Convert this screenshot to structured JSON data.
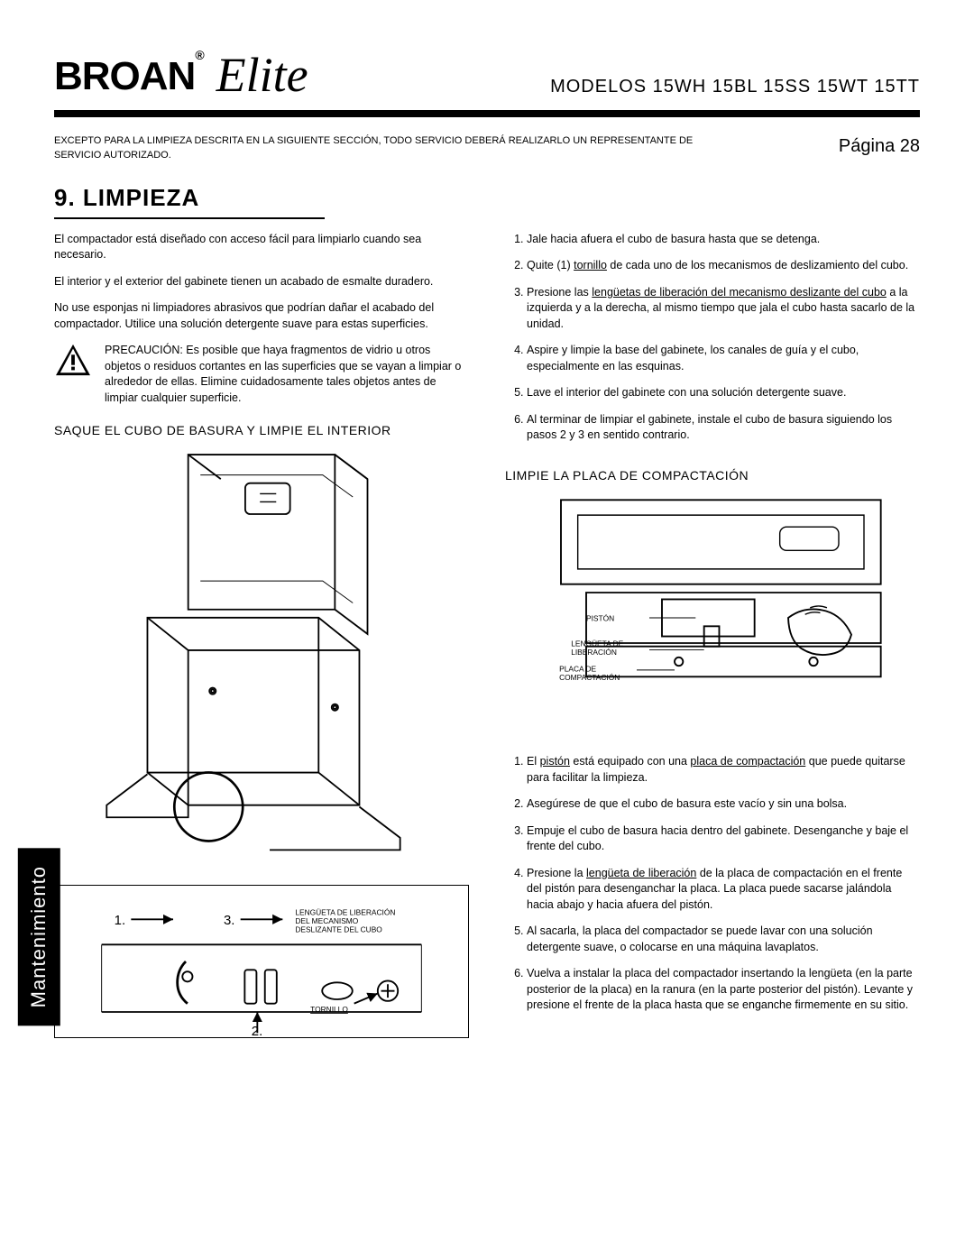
{
  "header": {
    "brand": "BROAN",
    "brand_reg": "®",
    "subbrand": "Elite",
    "models": "MODELOS 15WH   15BL   15SS   15WT   15TT"
  },
  "topnote": "EXCEPTO PARA LA LIMPIEZA DESCRITA EN LA SIGUIENTE SECCIÓN, TODO SERVICIO DEBERÁ REALIZARLO UN REPRESENTANTE DE SERVICIO AUTORIZADO.",
  "page_label": "Página 28",
  "section_title": "9. LIMPIEZA",
  "side_tab": "Mantenimiento",
  "left": {
    "p1": "El compactador está diseñado con acceso fácil para limpiarlo cuando sea necesario.",
    "p2": "El interior y el exterior del gabinete tienen un acabado de esmalte duradero.",
    "p3": "No use esponjas ni limpiadores abrasivos que podrían dañar el acabado del compactador. Utilice una solución detergente suave para estas superficies.",
    "caution": "PRECAUCIÓN: Es posible que haya fragmentos de vidrio u otros objetos o residuos cortantes en las superficies que se vayan a limpiar o alrededor de ellas. Elimine cuidadosamente tales objetos antes de limpiar cualquier superficie.",
    "subhead": "SAQUE EL CUBO DE BASURA Y LIMPIE EL INTERIOR",
    "fig_small": {
      "n1": "1.",
      "n2": "2.",
      "n3": "3.",
      "lbl_tab": "LENGÜETA DE LIBERACIÓN DEL MECANISMO DESLIZANTE DEL CUBO",
      "lbl_screw": "TORNILLO"
    }
  },
  "right": {
    "steps_a": [
      "Jale hacia afuera el cubo de basura hasta que se detenga.",
      "Quite (1) <u>tornillo</u> de cada uno de los mecanismos de deslizamiento del cubo.",
      "Presione las <u>lengüetas de liberación del mecanismo deslizante del cubo</u> a la izquierda y a la derecha, al mismo tiempo que jala el cubo hasta sacarlo de la unidad.",
      "Aspire y limpie la base del gabinete, los canales de guía y el cubo, especialmente en las esquinas.",
      "Lave el interior del gabinete con una solución detergente suave.",
      "Al terminar de limpiar el gabinete, instale el cubo de basura siguiendo los pasos 2 y 3 en sentido contrario."
    ],
    "subhead": "LIMPIE LA PLACA DE COMPACTACIÓN",
    "fig": {
      "piston": "PISTÓN",
      "tab": "LENGÜETA DE LIBERACIÓN",
      "plate": "PLACA DE COMPACTACIÓN"
    },
    "steps_b": [
      "El <u>pistón</u> está equipado con una <u>placa de compactación</u> que puede quitarse para facilitar la limpieza.",
      "Asegúrese de que el cubo de basura este vacío y sin una bolsa.",
      "Empuje el cubo de basura hacia dentro del gabinete. Desenganche y baje el frente del cubo.",
      "Presione la <u>lengüeta de liberación</u> de la placa de compactación en el frente del pistón para desenganchar la placa. La placa puede sacarse jalándola hacia abajo y hacia afuera del pistón.",
      "Al sacarla, la placa del compactador se puede lavar con una solución detergente suave, o colocarse en una máquina lavaplatos.",
      "Vuelva a instalar la placa del compactador insertando la lengüeta (en la parte posterior de la placa) en la ranura (en la parte posterior del pistón). Levante y presione el frente de la placa hasta que se enganche firmemente en su sitio."
    ]
  },
  "colors": {
    "text": "#000000",
    "bg": "#ffffff",
    "tab_bg": "#000000",
    "tab_fg": "#ffffff"
  }
}
